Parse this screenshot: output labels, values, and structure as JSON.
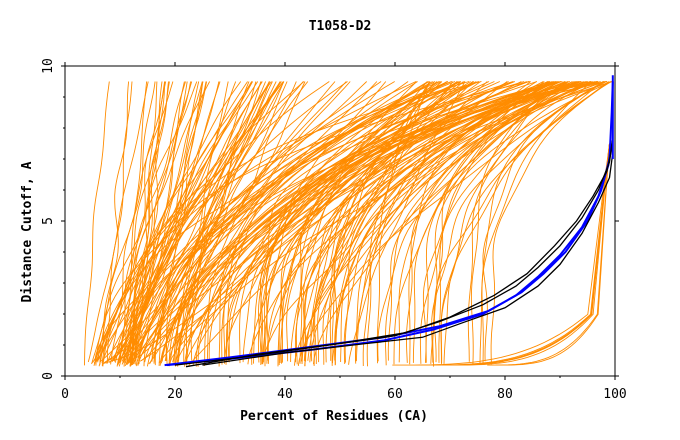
{
  "chart_data": {
    "type": "line",
    "title": "T1058-D2",
    "xlabel": "Percent of Residues (CA)",
    "ylabel": "Distance Cutoff, A",
    "xlim": [
      0,
      100
    ],
    "ylim": [
      0,
      10
    ],
    "x_ticks": [
      "0",
      "20",
      "40",
      "60",
      "80",
      "100"
    ],
    "y_ticks": [
      "0",
      "5",
      "10"
    ],
    "grid": false,
    "legend": "none",
    "colors": {
      "bundle": "#ff8c00",
      "highlight_blue": "#0000ff",
      "highlight_black": "#000000",
      "axis": "#000000",
      "background": "#ffffff"
    },
    "series": [
      {
        "x": [
          18.1,
          30,
          45,
          58,
          68,
          77,
          83,
          87,
          91,
          95,
          97.5,
          99,
          99.4,
          99.6
        ],
        "y": [
          0.35,
          0.6,
          0.95,
          1.25,
          1.6,
          2.1,
          2.7,
          3.3,
          4.0,
          5.0,
          6.0,
          7.0,
          8.5,
          9.5
        ]
      },
      {
        "x": [
          18.5,
          30,
          45,
          58,
          67,
          76,
          82,
          86,
          90,
          94,
          97,
          98.8,
          99.3
        ],
        "y": [
          0.35,
          0.55,
          0.85,
          1.15,
          1.5,
          2.0,
          2.6,
          3.2,
          3.9,
          4.8,
          5.8,
          6.8,
          7.5
        ]
      },
      {
        "x": [
          20,
          32,
          46,
          60,
          68,
          76,
          82,
          86,
          90,
          94,
          97,
          99,
          99.5
        ],
        "y": [
          0.35,
          0.6,
          0.95,
          1.3,
          1.75,
          2.3,
          2.9,
          3.5,
          4.2,
          5.1,
          6.0,
          6.9,
          7.6
        ]
      },
      {
        "x": [
          22,
          35,
          50,
          62,
          70,
          78,
          84,
          89,
          93,
          96,
          98.5,
          99.5
        ],
        "y": [
          0.3,
          0.7,
          1.05,
          1.4,
          1.9,
          2.6,
          3.3,
          4.2,
          5.0,
          5.8,
          6.6,
          7.4
        ]
      },
      {
        "x": [
          25,
          40,
          55,
          65,
          72,
          80,
          86,
          90,
          94,
          97,
          99,
          99.6
        ],
        "y": [
          0.35,
          0.75,
          1.05,
          1.25,
          1.7,
          2.2,
          2.9,
          3.6,
          4.6,
          5.6,
          6.4,
          7.2
        ]
      }
    ]
  }
}
